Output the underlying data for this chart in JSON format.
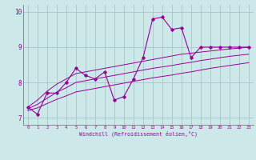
{
  "x": [
    0,
    1,
    2,
    3,
    4,
    5,
    6,
    7,
    8,
    9,
    10,
    11,
    12,
    13,
    14,
    15,
    16,
    17,
    18,
    19,
    20,
    21,
    22,
    23
  ],
  "temp_main": [
    7.3,
    7.1,
    7.7,
    7.7,
    8.0,
    8.4,
    8.2,
    8.1,
    8.3,
    7.5,
    7.6,
    8.1,
    8.7,
    9.8,
    9.85,
    9.5,
    9.55,
    8.7,
    9.0,
    9.0,
    9.0,
    9.0,
    9.0,
    9.0
  ],
  "temp_upper": [
    7.3,
    7.5,
    7.75,
    7.95,
    8.1,
    8.25,
    8.3,
    8.35,
    8.4,
    8.45,
    8.5,
    8.55,
    8.6,
    8.65,
    8.7,
    8.75,
    8.8,
    8.83,
    8.86,
    8.89,
    8.92,
    8.95,
    8.97,
    9.0
  ],
  "temp_mid": [
    7.25,
    7.38,
    7.55,
    7.72,
    7.85,
    8.0,
    8.05,
    8.1,
    8.15,
    8.2,
    8.25,
    8.3,
    8.35,
    8.4,
    8.44,
    8.48,
    8.53,
    8.57,
    8.62,
    8.66,
    8.7,
    8.74,
    8.77,
    8.8
  ],
  "temp_lower": [
    7.2,
    7.28,
    7.4,
    7.52,
    7.62,
    7.73,
    7.78,
    7.83,
    7.88,
    7.93,
    7.98,
    8.03,
    8.08,
    8.13,
    8.17,
    8.21,
    8.26,
    8.3,
    8.35,
    8.4,
    8.44,
    8.48,
    8.52,
    8.56
  ],
  "ylim": [
    6.8,
    10.2
  ],
  "xlim": [
    -0.5,
    23.5
  ],
  "yticks": [
    7,
    8,
    9,
    10
  ],
  "xticks": [
    0,
    1,
    2,
    3,
    4,
    5,
    6,
    7,
    8,
    9,
    10,
    11,
    12,
    13,
    14,
    15,
    16,
    17,
    18,
    19,
    20,
    21,
    22,
    23
  ],
  "color_main": "#990099",
  "xlabel": "Windchill (Refroidissement éolien,°C)",
  "background_color": "#cce8e8",
  "grid_color": "#99cccc",
  "fig_width": 3.2,
  "fig_height": 2.0,
  "dpi": 100
}
